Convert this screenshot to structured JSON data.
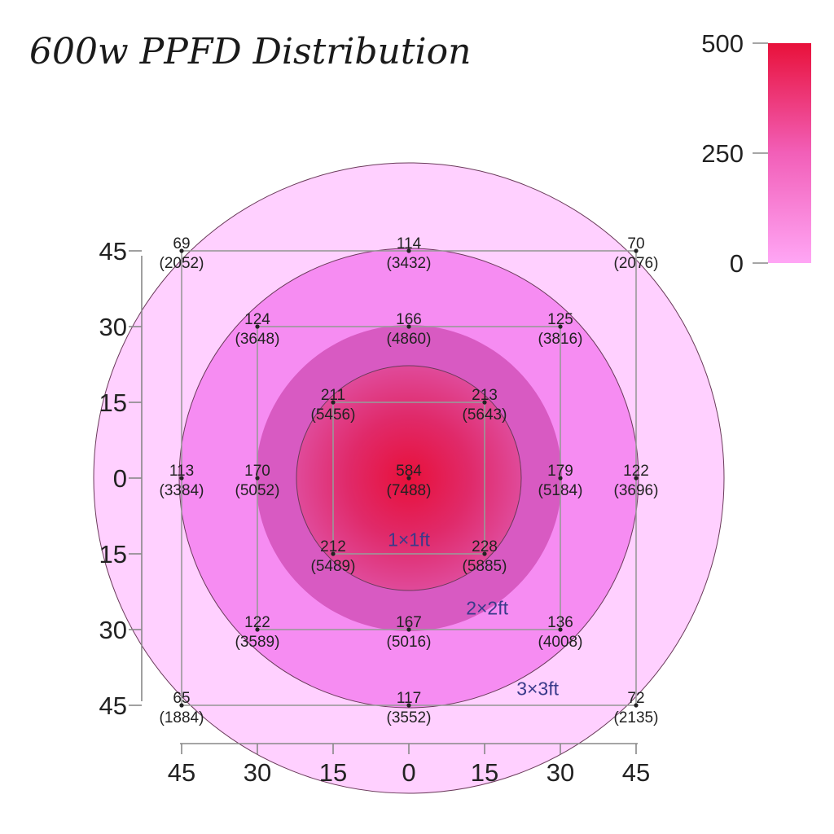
{
  "chart_data": {
    "type": "heatmap",
    "title": "600w PPFD Distribution",
    "x_ticks": [
      "45",
      "30",
      "15",
      "0",
      "15",
      "30",
      "45"
    ],
    "y_ticks": [
      "45",
      "30",
      "15",
      "0",
      "15",
      "30",
      "45"
    ],
    "colorbar": {
      "ticks": [
        "500",
        "250",
        "0"
      ],
      "values": [
        500,
        250,
        0
      ],
      "color_high": "#e8113a",
      "color_low": "#ffa6f5"
    },
    "zone_colors": [
      "#ffd0ff",
      "#f68cf2",
      "#d85ac2",
      "#e8113a"
    ],
    "boxes": [
      {
        "label": "1×1ft",
        "half": 15
      },
      {
        "label": "2×2ft",
        "half": 30
      },
      {
        "label": "3×3ft",
        "half": 45
      }
    ],
    "points": [
      {
        "x": -45,
        "y": 45,
        "ppfd": "69",
        "value2": "(2052)"
      },
      {
        "x": 0,
        "y": 45,
        "ppfd": "114",
        "value2": "(3432)"
      },
      {
        "x": 45,
        "y": 45,
        "ppfd": "70",
        "value2": "(2076)"
      },
      {
        "x": -30,
        "y": 30,
        "ppfd": "124",
        "value2": "(3648)"
      },
      {
        "x": 0,
        "y": 30,
        "ppfd": "166",
        "value2": "(4860)"
      },
      {
        "x": 30,
        "y": 30,
        "ppfd": "125",
        "value2": "(3816)"
      },
      {
        "x": -15,
        "y": 15,
        "ppfd": "211",
        "value2": "(5456)"
      },
      {
        "x": 15,
        "y": 15,
        "ppfd": "213",
        "value2": "(5643)"
      },
      {
        "x": -45,
        "y": 0,
        "ppfd": "113",
        "value2": "(3384)"
      },
      {
        "x": -30,
        "y": 0,
        "ppfd": "170",
        "value2": "(5052)"
      },
      {
        "x": 0,
        "y": 0,
        "ppfd": "584",
        "value2": "(7488)"
      },
      {
        "x": 30,
        "y": 0,
        "ppfd": "179",
        "value2": "(5184)"
      },
      {
        "x": 45,
        "y": 0,
        "ppfd": "122",
        "value2": "(3696)"
      },
      {
        "x": -15,
        "y": -15,
        "ppfd": "212",
        "value2": "(5489)"
      },
      {
        "x": 15,
        "y": -15,
        "ppfd": "228",
        "value2": "(5885)"
      },
      {
        "x": -30,
        "y": -30,
        "ppfd": "122",
        "value2": "(3589)"
      },
      {
        "x": 0,
        "y": -30,
        "ppfd": "167",
        "value2": "(5016)"
      },
      {
        "x": 30,
        "y": -30,
        "ppfd": "136",
        "value2": "(4008)"
      },
      {
        "x": -45,
        "y": -45,
        "ppfd": "65",
        "value2": "(1884)"
      },
      {
        "x": 0,
        "y": -45,
        "ppfd": "117",
        "value2": "(3552)"
      },
      {
        "x": 45,
        "y": -45,
        "ppfd": "72",
        "value2": "(2135)"
      }
    ]
  }
}
